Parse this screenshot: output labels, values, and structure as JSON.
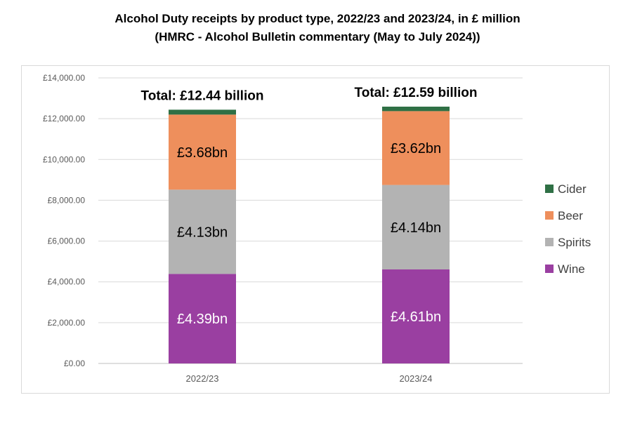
{
  "chart_data": {
    "type": "bar",
    "stacked": true,
    "title": "Alcohol Duty receipts by product type, 2022/23 and 2023/24, in £ million",
    "subtitle": "(HMRC - Alcohol Bulletin commentary (May to July 2024))",
    "categories": [
      "2022/23",
      "2023/24"
    ],
    "ylim": [
      0,
      14000
    ],
    "yticks": [
      0,
      2000,
      4000,
      6000,
      8000,
      10000,
      12000,
      14000
    ],
    "ytick_labels": [
      "£0.00",
      "£2,000.00",
      "£4,000.00",
      "£6,000.00",
      "£8,000.00",
      "£10,000.00",
      "£12,000.00",
      "£14,000.00"
    ],
    "grid": true,
    "legend_position": "right",
    "series": [
      {
        "name": "Wine",
        "color": "#9a3fa1",
        "values": [
          4390,
          4610
        ],
        "labels": [
          "£4.39bn",
          "£4.61bn"
        ],
        "label_color": "#ffffff"
      },
      {
        "name": "Spirits",
        "color": "#b3b3b3",
        "values": [
          4130,
          4140
        ],
        "labels": [
          "£4.13bn",
          "£4.14bn"
        ],
        "label_color": "#000000"
      },
      {
        "name": "Beer",
        "color": "#ee8f5c",
        "values": [
          3680,
          3620
        ],
        "labels": [
          "£3.68bn",
          "£3.62bn"
        ],
        "label_color": "#000000"
      },
      {
        "name": "Cider",
        "color": "#2f7045",
        "values": [
          240,
          220
        ],
        "labels": [
          "",
          ""
        ],
        "label_color": "#000000"
      }
    ],
    "totals": [
      "Total: £12.44 billion",
      "Total: £12.59 billion"
    ]
  }
}
